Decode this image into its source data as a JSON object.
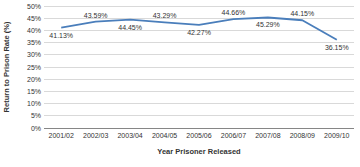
{
  "chart_data": {
    "type": "line",
    "x_label": "Year Prisoner Released",
    "y_label": "Return to Prison Rate (%)",
    "categories": [
      "2001/02",
      "2002/03",
      "2003/04",
      "2004/05",
      "2005/06",
      "2006/07",
      "2007/08",
      "2008/09",
      "2009/10"
    ],
    "values": [
      41.13,
      43.59,
      44.45,
      43.29,
      42.27,
      44.66,
      45.29,
      44.15,
      36.15
    ],
    "value_labels": [
      "41.13%",
      "43.59%",
      "44.45%",
      "43.29%",
      "42.27%",
      "44.66%",
      "45.29%",
      "44.15%",
      "36.15%"
    ],
    "color": "#4a7ebb",
    "ylim": [
      0,
      50
    ],
    "yticks": [
      {
        "value": 0,
        "label": "0%"
      },
      {
        "value": 5,
        "label": "5%"
      },
      {
        "value": 10,
        "label": "10%"
      },
      {
        "value": 15,
        "label": "15%"
      },
      {
        "value": 20,
        "label": "20%"
      },
      {
        "value": 25,
        "label": "25%"
      },
      {
        "value": 30,
        "label": "30%"
      },
      {
        "value": 35,
        "label": "35%"
      },
      {
        "value": 40,
        "label": "40%"
      },
      {
        "value": 45,
        "label": "45%"
      },
      {
        "value": 50,
        "label": "50%"
      }
    ],
    "grid": true,
    "data_labels": true
  }
}
